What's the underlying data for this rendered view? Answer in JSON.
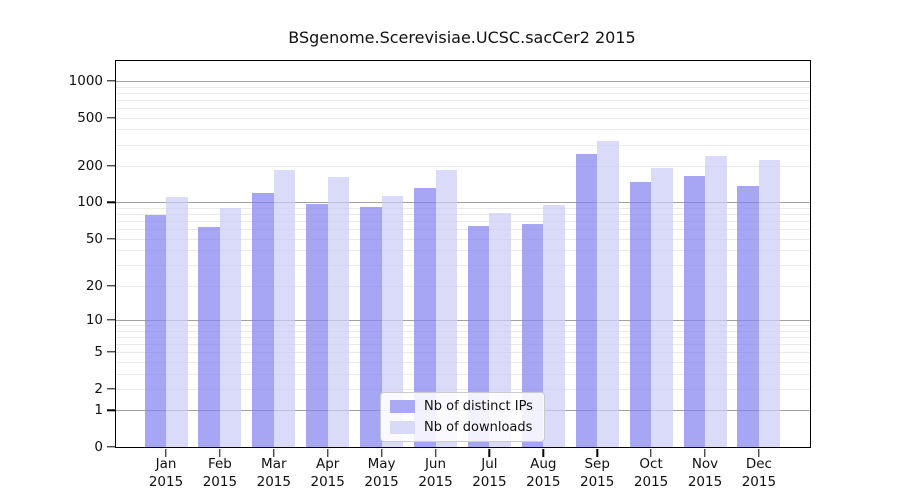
{
  "chart_data": {
    "type": "bar",
    "title": "BSgenome.Scerevisiae.UCSC.sacCer2 2015",
    "yscale": "log1p",
    "ylim": [
      0,
      1456
    ],
    "ytick_values": [
      1000,
      500,
      200,
      100,
      50,
      20,
      10,
      5,
      2,
      1,
      0
    ],
    "grid_major": [
      1,
      10,
      100,
      1000
    ],
    "grid_minor": [
      2,
      3,
      4,
      5,
      6,
      7,
      8,
      9,
      20,
      30,
      40,
      50,
      60,
      70,
      80,
      90,
      200,
      300,
      400,
      500,
      600,
      700,
      800,
      900
    ],
    "grid": "horizontal",
    "categories": [
      "Jan",
      "Feb",
      "Mar",
      "Apr",
      "May",
      "Jun",
      "Jul",
      "Aug",
      "Sep",
      "Oct",
      "Nov",
      "Dec"
    ],
    "category_year": "2015",
    "series": [
      {
        "name": "Nb of distinct IPs",
        "bar_color": "rgba(131,131,241,0.72)",
        "legend_color": "#a9a9f4",
        "values": [
          79,
          62,
          120,
          97,
          92,
          132,
          64,
          66,
          252,
          148,
          167,
          138
        ]
      },
      {
        "name": "Nb of downloads",
        "bar_color": "rgba(204,204,247,0.72)",
        "legend_color": "#d9d9f8",
        "values": [
          112,
          90,
          186,
          162,
          114,
          187,
          82,
          95,
          322,
          192,
          244,
          224
        ]
      }
    ],
    "legend_position": "bottom-center",
    "colors": {
      "grid_major": "#a3a3a3",
      "grid_minor": "#eaeaea",
      "axis": "#000000",
      "text": "#111111"
    }
  }
}
